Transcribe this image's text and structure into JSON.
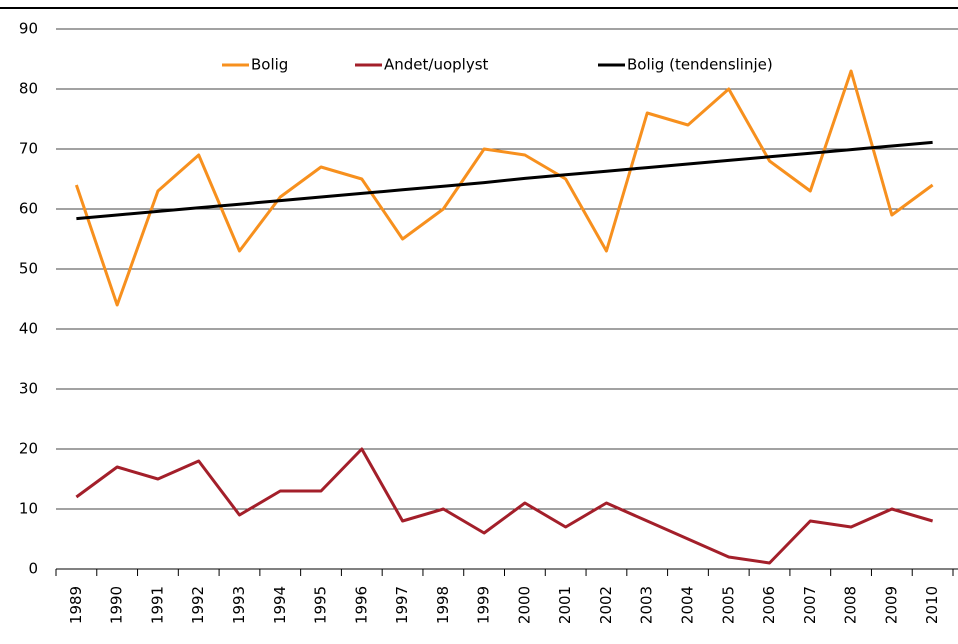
{
  "chart_data": {
    "type": "line",
    "categories": [
      "1989",
      "1990",
      "1991",
      "1992",
      "1993",
      "1994",
      "1995",
      "1996",
      "1997",
      "1998",
      "1999",
      "2000",
      "2001",
      "2002",
      "2003",
      "2004",
      "2005",
      "2006",
      "2007",
      "2008",
      "2009",
      "2010"
    ],
    "series": [
      {
        "name": "Bolig",
        "color": "#f7901e",
        "values": [
          64,
          44,
          63,
          69,
          53,
          62,
          67,
          65,
          55,
          60,
          70,
          69,
          65,
          53,
          76,
          74,
          80,
          68,
          63,
          83,
          59,
          64
        ]
      },
      {
        "name": "Andet/uoplyst",
        "color": "#a31f2a",
        "values": [
          12,
          17,
          15,
          18,
          9,
          13,
          13,
          20,
          8,
          10,
          6,
          11,
          7,
          11,
          8,
          5,
          2,
          1,
          8,
          7,
          10,
          8
        ]
      },
      {
        "name": "Bolig (tendenslinje)",
        "color": "#000000",
        "values": [
          58.4,
          59.0,
          59.6,
          60.2,
          60.8,
          61.4,
          62.0,
          62.6,
          63.2,
          63.8,
          64.4,
          65.1,
          65.7,
          66.3,
          66.9,
          67.5,
          68.1,
          68.7,
          69.3,
          69.9,
          70.5,
          71.1
        ]
      }
    ],
    "ylim": [
      0,
      90
    ],
    "yticks": [
      0,
      10,
      20,
      30,
      40,
      50,
      60,
      70,
      80,
      90
    ],
    "grid": true,
    "legend": "top"
  }
}
